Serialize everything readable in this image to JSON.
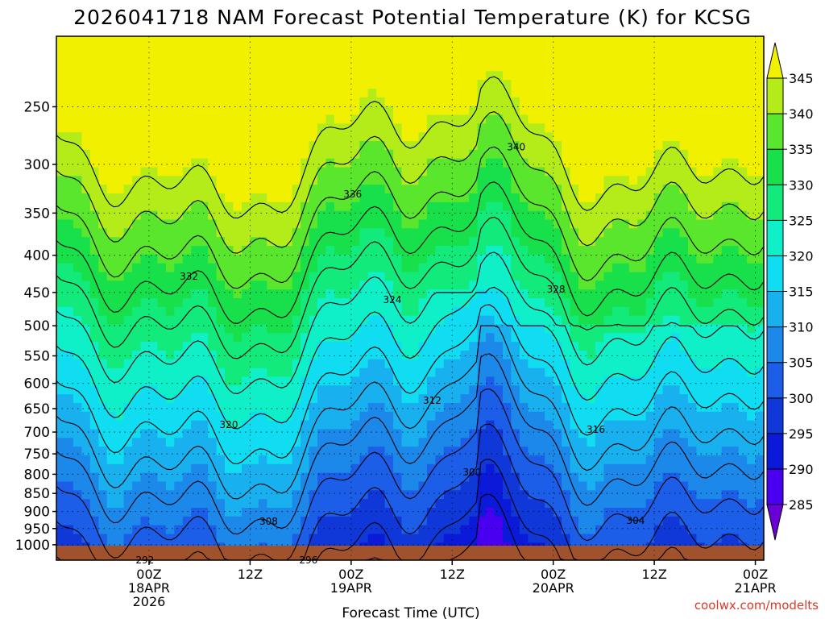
{
  "chart_data": {
    "type": "heatmap",
    "title": "2026041718 NAM Forecast Potential Temperature (K) for KCSG",
    "xlabel": "Forecast Time (UTC)",
    "ylabel": "",
    "credit": "coolwx.com/modelts",
    "y_axis": {
      "scale": "log-pressure",
      "units": "hPa",
      "range": [
        1050,
        200
      ],
      "ticks": [
        250,
        300,
        350,
        400,
        450,
        500,
        550,
        600,
        650,
        700,
        750,
        800,
        850,
        900,
        950,
        1000
      ]
    },
    "x_axis": {
      "range_hours": [
        -5,
        79
      ],
      "ticks": [
        {
          "hour": 6,
          "lines": [
            "00Z",
            "18APR",
            "2026"
          ]
        },
        {
          "hour": 18,
          "lines": [
            "12Z"
          ]
        },
        {
          "hour": 30,
          "lines": [
            "00Z",
            "19APR"
          ]
        },
        {
          "hour": 42,
          "lines": [
            "12Z"
          ]
        },
        {
          "hour": 54,
          "lines": [
            "00Z",
            "20APR"
          ]
        },
        {
          "hour": 66,
          "lines": [
            "12Z"
          ]
        },
        {
          "hour": 78,
          "lines": [
            "00Z",
            "21APR"
          ]
        }
      ]
    },
    "colorbar": {
      "levels": [
        285,
        290,
        295,
        300,
        305,
        310,
        315,
        320,
        325,
        330,
        335,
        340,
        345
      ],
      "colors": [
        "#6a00d8",
        "#4a00f0",
        "#0a1ad8",
        "#1038d8",
        "#1c5ee8",
        "#1c88ea",
        "#18b0ee",
        "#10dcf2",
        "#10f0c8",
        "#12ea7c",
        "#18e04a",
        "#5ae62c",
        "#b4ec1a",
        "#f0f000"
      ]
    },
    "contour_interval": 4,
    "contour_labels": [
      340,
      336,
      332,
      328,
      324,
      320,
      316,
      312,
      308,
      304,
      300,
      296,
      292
    ],
    "ground_color": "#a0522d"
  }
}
